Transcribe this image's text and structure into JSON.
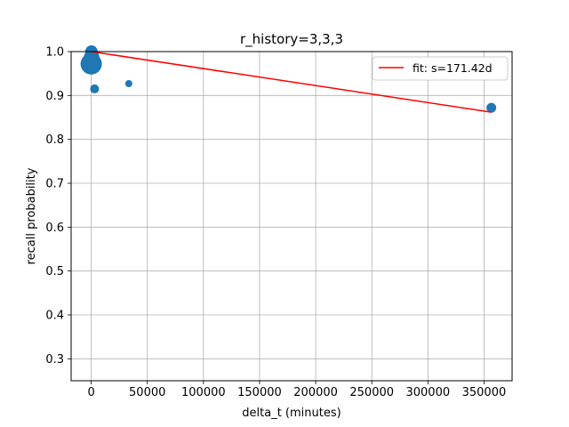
{
  "chart_data": {
    "type": "scatter",
    "title": "r_history=3,3,3",
    "xlabel": "delta_t (minutes)",
    "ylabel": "recall probability",
    "xlim": [
      -17900,
      375000
    ],
    "ylim": [
      0.25,
      1.0
    ],
    "xticks": [
      0,
      50000,
      100000,
      150000,
      200000,
      250000,
      300000,
      350000
    ],
    "xtick_labels": [
      "0",
      "50000",
      "100000",
      "150000",
      "200000",
      "250000",
      "300000",
      "350000"
    ],
    "yticks": [
      0.3,
      0.4,
      0.5,
      0.6,
      0.7,
      0.8,
      0.9,
      1.0
    ],
    "ytick_labels": [
      "0.3",
      "0.4",
      "0.5",
      "0.6",
      "0.7",
      "0.8",
      "0.9",
      "1.0"
    ],
    "grid": true,
    "legend_position": "top-right",
    "colors": {
      "points": "#1f77b4",
      "fit": "#ff0000",
      "grid": "#b0b0b0"
    },
    "series": [
      {
        "kind": "scatter",
        "points": [
          {
            "x": 0,
            "y": 0.972,
            "size": 12
          },
          {
            "x": 500,
            "y": 0.99,
            "size": 8
          },
          {
            "x": 300,
            "y": 0.985,
            "size": 9
          },
          {
            "x": 200,
            "y": 1.0,
            "size": 7
          },
          {
            "x": 3000,
            "y": 0.915,
            "size": 5
          },
          {
            "x": 33500,
            "y": 0.927,
            "size": 4
          },
          {
            "x": 356500,
            "y": 0.872,
            "size": 5.5
          }
        ]
      },
      {
        "kind": "line",
        "name": "fit: s=171.42d",
        "x": [
          0,
          356500
        ],
        "y": [
          1.0,
          0.862
        ]
      }
    ]
  }
}
